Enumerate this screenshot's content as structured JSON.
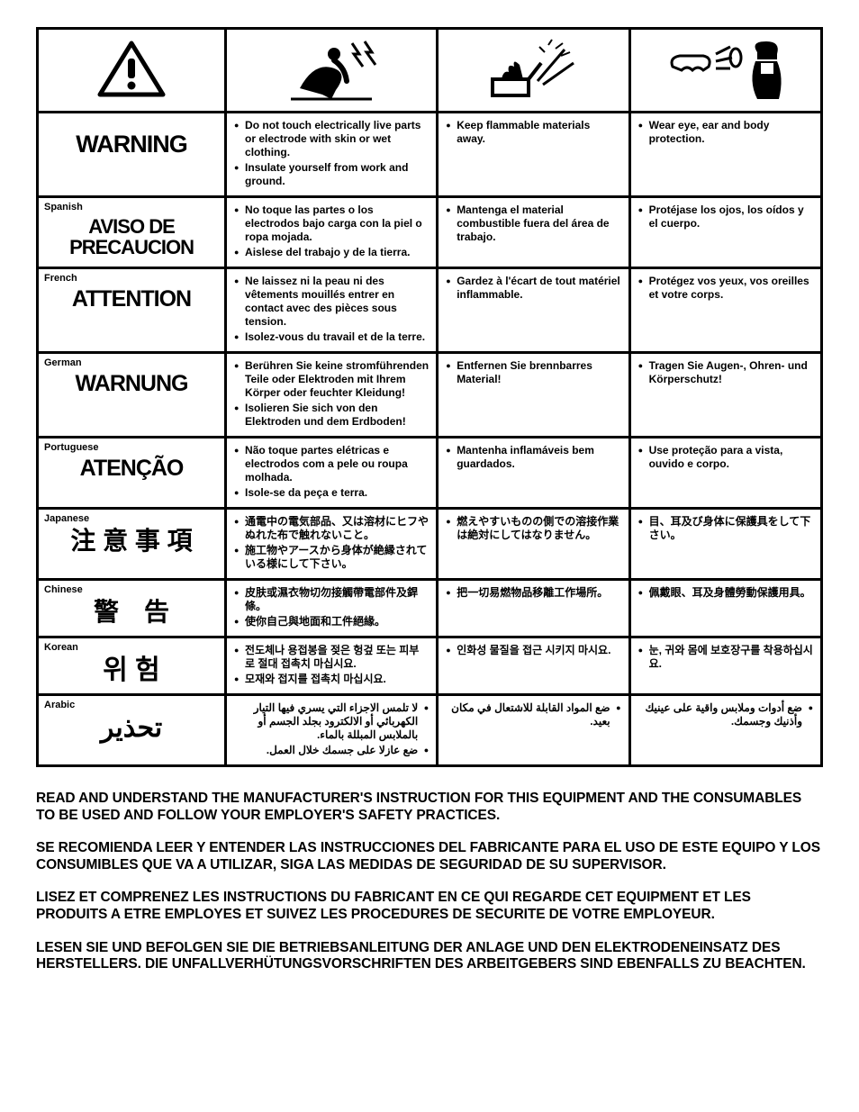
{
  "table": {
    "col_widths_pct": [
      24,
      27,
      24.5,
      24.5
    ],
    "border_color": "#000000",
    "background": "#ffffff",
    "header_icons": [
      "warning-triangle",
      "slip-electric",
      "fire-spark",
      "ppe-eye-ear"
    ],
    "rows": [
      {
        "lang_label": "",
        "heading": "WARNING",
        "heading_fontsize": 27,
        "heading_letterspacing": "-1px",
        "cells": [
          [
            "Do not touch electrically live parts or electrode with skin or wet clothing.",
            "Insulate yourself from work and ground."
          ],
          [
            "Keep flammable materials away."
          ],
          [
            "Wear eye, ear and body protection."
          ]
        ]
      },
      {
        "lang_label": "Spanish",
        "heading": "AVISO DE PRECAUCION",
        "heading_fontsize": 22,
        "heading_letterspacing": "-1px",
        "cells": [
          [
            "No toque las partes o los electrodos bajo carga con la piel o ropa mojada.",
            "Aislese del trabajo y de la tierra."
          ],
          [
            "Mantenga el material combustible fuera del área de trabajo."
          ],
          [
            "Protéjase los ojos, los oídos y el cuerpo."
          ]
        ]
      },
      {
        "lang_label": "French",
        "heading": "ATTENTION",
        "heading_fontsize": 25,
        "heading_letterspacing": "-1px",
        "cells": [
          [
            "Ne laissez ni la peau ni des vêtements mouillés entrer en contact avec des pièces sous tension.",
            "Isolez-vous du travail et de la terre."
          ],
          [
            "Gardez à l'écart de tout matériel inflammable."
          ],
          [
            "Protégez vos yeux, vos oreilles et votre corps."
          ]
        ]
      },
      {
        "lang_label": "German",
        "heading": "WARNUNG",
        "heading_fontsize": 25,
        "heading_letterspacing": "-1px",
        "cells": [
          [
            "Berühren Sie keine stromführenden Teile oder Elektroden mit Ihrem Körper oder feuchter Kleidung!",
            "Isolieren Sie sich von den Elektroden und dem Erdboden!"
          ],
          [
            "Entfernen Sie brennbarres Material!"
          ],
          [
            "Tragen Sie Augen-, Ohren- und Körperschutz!"
          ]
        ]
      },
      {
        "lang_label": "Portuguese",
        "heading": "ATENÇÃO",
        "heading_fontsize": 25,
        "heading_letterspacing": "-1px",
        "cells": [
          [
            "Não toque partes elétricas e electrodos com a pele ou roupa molhada.",
            "Isole-se da peça e terra."
          ],
          [
            "Mantenha inflamáveis bem guardados."
          ],
          [
            "Use proteção para a vista, ouvido e corpo."
          ]
        ]
      },
      {
        "lang_label": "Japanese",
        "heading": "注 意 事 項",
        "heading_fontsize": 28,
        "heading_letterspacing": "0px",
        "cells": [
          [
            "通電中の電気部品、又は溶材にヒフやぬれた布で触れないこと。",
            "施工物やアースから身体が絶縁されている様にして下さい。"
          ],
          [
            "燃えやすいものの側での溶接作業は絶対にしてはなりません。"
          ],
          [
            "目、耳及び身体に保護具をして下さい。"
          ]
        ]
      },
      {
        "lang_label": "Chinese",
        "heading": "警　告",
        "heading_fontsize": 28,
        "heading_letterspacing": "0px",
        "cells": [
          [
            "皮肤或濕衣物切勿接觸帶電部件及銲條。",
            "使你自己與地面和工件絕緣。"
          ],
          [
            "把一切易燃物品移離工作場所。"
          ],
          [
            "佩戴眼、耳及身體勞動保護用具。"
          ]
        ]
      },
      {
        "lang_label": "Korean",
        "heading": "위  험",
        "heading_fontsize": 30,
        "heading_letterspacing": "0px",
        "cells": [
          [
            "전도체나 용접봉을 젖은 헝겊 또는 피부로 절대 접촉치 마십시요.",
            "모재와 접지를 접촉치 마십시요."
          ],
          [
            "인화성 물질을 접근 시키지 마시요."
          ],
          [
            "눈, 귀와 몸에 보호장구를 착용하십시요."
          ]
        ]
      },
      {
        "lang_label": "Arabic",
        "heading": "تحذير",
        "heading_fontsize": 30,
        "heading_letterspacing": "0px",
        "rtl": true,
        "cells": [
          [
            "لا تلمس الاجزاء التي يسري فيها التيار الكهربائي أو الالكترود بجلد الجسم أو بالملابس المبللة بالماء.",
            "ضع عازلا على جسمك خلال العمل."
          ],
          [
            "ضع المواد القابلة للاشتعال في مكان بعيد."
          ],
          [
            "ضع أدوات وملابس واقية على عينيك وأذنيك وجسمك."
          ]
        ]
      }
    ]
  },
  "footer": {
    "paragraphs": [
      "READ AND UNDERSTAND THE MANUFACTURER'S INSTRUCTION FOR THIS EQUIPMENT AND THE CONSUMABLES TO BE USED AND FOLLOW YOUR EMPLOYER'S SAFETY PRACTICES.",
      "SE RECOMIENDA LEER Y ENTENDER LAS INSTRUCCIONES DEL FABRICANTE PARA EL USO DE ESTE EQUIPO Y LOS CONSUMIBLES QUE VA A UTILIZAR, SIGA LAS MEDIDAS DE SEGURIDAD DE SU SUPERVISOR.",
      "LISEZ ET COMPRENEZ LES INSTRUCTIONS DU FABRICANT EN CE QUI REGARDE CET EQUIPMENT ET LES PRODUITS A ETRE EMPLOYES ET SUIVEZ LES PROCEDURES DE SECURITE DE VOTRE EMPLOYEUR.",
      "LESEN SIE UND BEFOLGEN SIE DIE BETRIEBSANLEITUNG DER ANLAGE UND DEN ELEKTRODENEINSATZ DES HERSTELLERS. DIE UNFALLVERHÜTUNGSVORSCHRIFTEN DES ARBEITGEBERS SIND EBENFALLS ZU BEACHTEN."
    ]
  }
}
